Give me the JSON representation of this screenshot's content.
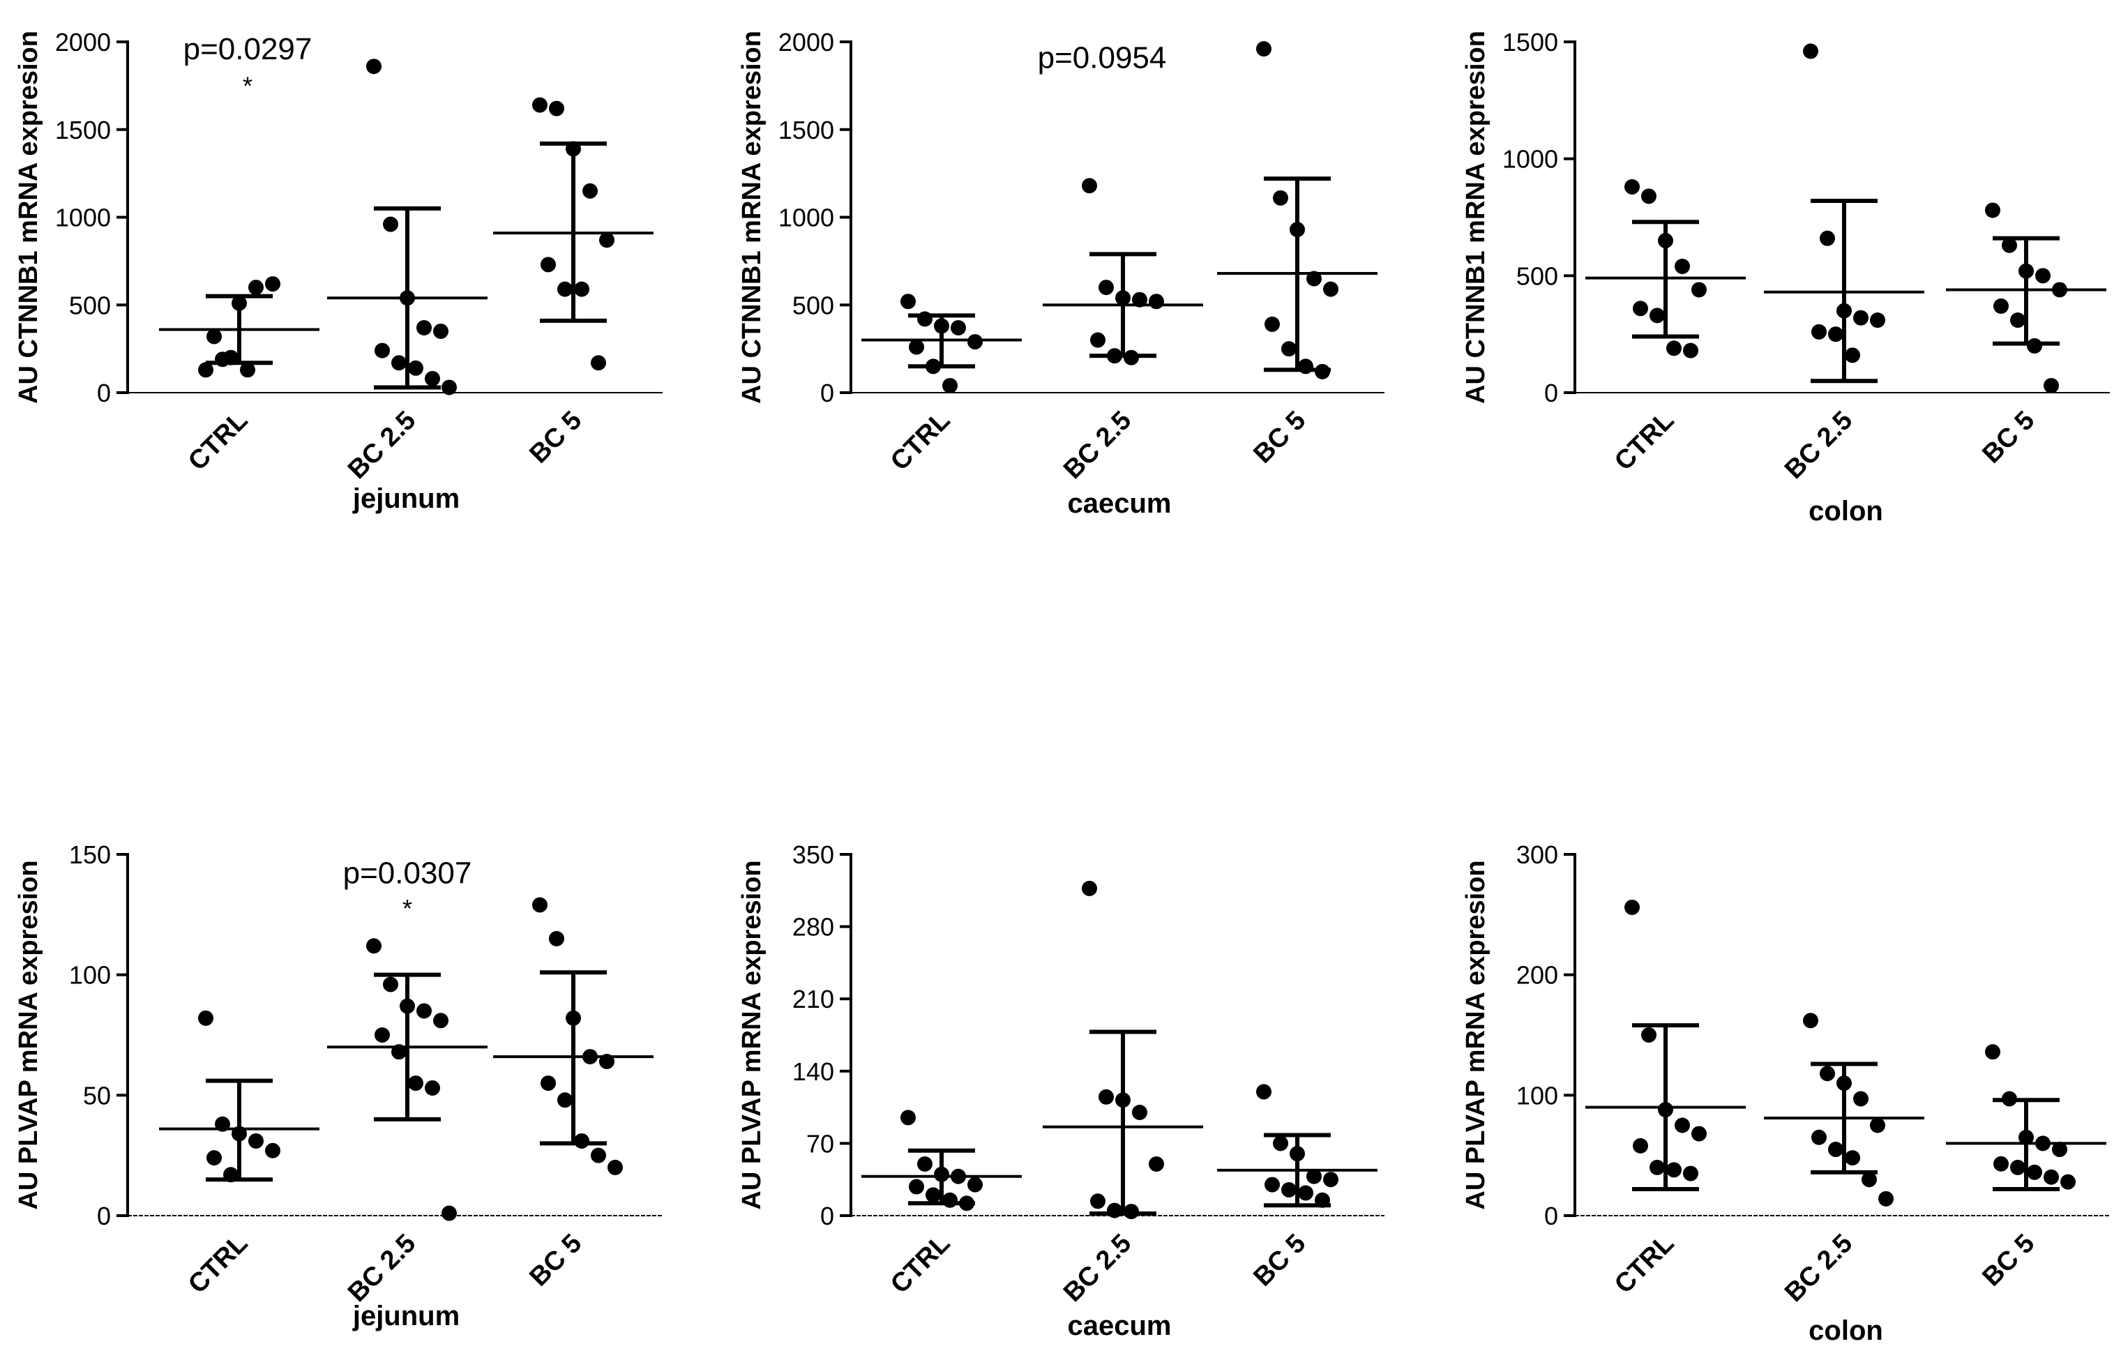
{
  "figure": {
    "description_title": "",
    "accent_color": "#000000",
    "background_color": "#ffffff"
  },
  "chart_data": [
    {
      "type": "scatter",
      "title": "",
      "region": "jejunum",
      "xlabel": "jejunum",
      "ylabel": "AU CTNNB1 mRNA expresion",
      "ylim": [
        0,
        2000
      ],
      "yticks": [
        0,
        500,
        1000,
        1500,
        2000
      ],
      "categories": [
        "CTRL",
        "BC 2.5",
        "BC 5"
      ],
      "annotation": {
        "text": "p=0.0297",
        "star": "*",
        "category_index": 0,
        "text_value": 1900,
        "star_value": 1700
      },
      "series": [
        {
          "name": "CTRL",
          "points": [
            130,
            190,
            510,
            600,
            620,
            320,
            200,
            130
          ],
          "mean": 360,
          "sd_low": 170,
          "sd_high": 550
        },
        {
          "name": "BC 2.5",
          "points": [
            1860,
            960,
            540,
            370,
            350,
            240,
            170,
            140,
            80,
            30
          ],
          "mean": 540,
          "sd_low": 30,
          "sd_high": 1050
        },
        {
          "name": "BC 5",
          "points": [
            1640,
            1620,
            1390,
            1150,
            870,
            730,
            590,
            590,
            170
          ],
          "mean": 910,
          "sd_low": 410,
          "sd_high": 1420
        }
      ]
    },
    {
      "type": "scatter",
      "title": "",
      "region": "caecum",
      "xlabel": "caecum",
      "ylabel": "AU CTNNB1 mRNA expresion",
      "ylim": [
        0,
        2000
      ],
      "yticks": [
        0,
        500,
        1000,
        1500,
        2000
      ],
      "categories": [
        "CTRL",
        "BC 2.5",
        "BC 5"
      ],
      "annotation": {
        "text": "p=0.0954",
        "star": "",
        "category_index": 1,
        "text_value": 1850,
        "star_value": null
      },
      "series": [
        {
          "name": "CTRL",
          "points": [
            520,
            420,
            380,
            370,
            290,
            260,
            150,
            40
          ],
          "mean": 300,
          "sd_low": 150,
          "sd_high": 440
        },
        {
          "name": "BC 2.5",
          "points": [
            1180,
            600,
            540,
            530,
            520,
            300,
            210,
            200
          ],
          "mean": 500,
          "sd_low": 210,
          "sd_high": 790
        },
        {
          "name": "BC 5",
          "points": [
            1960,
            1110,
            930,
            650,
            590,
            390,
            250,
            150,
            120
          ],
          "mean": 680,
          "sd_low": 130,
          "sd_high": 1220
        }
      ]
    },
    {
      "type": "scatter",
      "title": "",
      "region": "colon",
      "xlabel": "colon",
      "ylabel": "AU CTNNB1 mRNA expresion",
      "ylim": [
        0,
        1500
      ],
      "yticks": [
        0,
        500,
        1000,
        1500
      ],
      "categories": [
        "CTRL",
        "BC 2.5",
        "BC 5"
      ],
      "annotation": null,
      "series": [
        {
          "name": "CTRL",
          "points": [
            880,
            840,
            650,
            540,
            440,
            360,
            330,
            190,
            180
          ],
          "mean": 490,
          "sd_low": 240,
          "sd_high": 730
        },
        {
          "name": "BC 2.5",
          "points": [
            1460,
            660,
            350,
            320,
            310,
            260,
            250,
            160
          ],
          "mean": 430,
          "sd_low": 50,
          "sd_high": 820
        },
        {
          "name": "BC 5",
          "points": [
            780,
            630,
            520,
            500,
            440,
            370,
            310,
            200,
            30
          ],
          "mean": 440,
          "sd_low": 210,
          "sd_high": 660
        }
      ]
    },
    {
      "type": "scatter",
      "title": "",
      "region": "jejunum",
      "xlabel": "jejunum",
      "ylabel": "AU PLVAP mRNA expresion",
      "ylim": [
        0,
        150
      ],
      "yticks": [
        0,
        50,
        100,
        150
      ],
      "categories": [
        "CTRL",
        "BC 2.5",
        "BC 5"
      ],
      "annotation": {
        "text": "p=0.0307",
        "star": "*",
        "category_index": 1,
        "text_value": 138,
        "star_value": 124
      },
      "series": [
        {
          "name": "CTRL",
          "points": [
            82,
            38,
            34,
            31,
            27,
            24,
            17
          ],
          "mean": 36,
          "sd_low": 15,
          "sd_high": 56
        },
        {
          "name": "BC 2.5",
          "points": [
            112,
            96,
            87,
            85,
            81,
            75,
            68,
            55,
            53,
            1
          ],
          "mean": 70,
          "sd_low": 40,
          "sd_high": 100
        },
        {
          "name": "BC 5",
          "points": [
            129,
            115,
            82,
            66,
            64,
            55,
            48,
            31,
            25,
            20
          ],
          "mean": 66,
          "sd_low": 30,
          "sd_high": 101
        }
      ]
    },
    {
      "type": "scatter",
      "title": "",
      "region": "caecum",
      "xlabel": "caecum",
      "ylabel": "AU PLVAP mRNA expresion",
      "ylim": [
        0,
        350
      ],
      "yticks": [
        0,
        70,
        140,
        210,
        280,
        350
      ],
      "categories": [
        "CTRL",
        "BC 2.5",
        "BC 5"
      ],
      "annotation": null,
      "series": [
        {
          "name": "CTRL",
          "points": [
            95,
            50,
            40,
            38,
            30,
            28,
            20,
            15,
            12
          ],
          "mean": 38,
          "sd_low": 12,
          "sd_high": 63
        },
        {
          "name": "BC 2.5",
          "points": [
            317,
            115,
            112,
            100,
            50,
            14,
            5,
            4
          ],
          "mean": 86,
          "sd_low": 2,
          "sd_high": 178
        },
        {
          "name": "BC 5",
          "points": [
            120,
            70,
            60,
            38,
            35,
            30,
            25,
            22,
            15
          ],
          "mean": 44,
          "sd_low": 10,
          "sd_high": 78
        }
      ]
    },
    {
      "type": "scatter",
      "title": "",
      "region": "colon",
      "xlabel": "colon",
      "ylabel": "AU PLVAP mRNA expresion",
      "ylim": [
        0,
        300
      ],
      "yticks": [
        0,
        100,
        200,
        300
      ],
      "categories": [
        "CTRL",
        "BC 2.5",
        "BC 5"
      ],
      "annotation": null,
      "series": [
        {
          "name": "CTRL",
          "points": [
            256,
            150,
            88,
            75,
            68,
            58,
            40,
            38,
            35
          ],
          "mean": 90,
          "sd_low": 22,
          "sd_high": 158
        },
        {
          "name": "BC 2.5",
          "points": [
            162,
            118,
            110,
            97,
            75,
            65,
            55,
            48,
            30,
            14
          ],
          "mean": 81,
          "sd_low": 36,
          "sd_high": 126
        },
        {
          "name": "BC 5",
          "points": [
            136,
            97,
            65,
            60,
            55,
            43,
            40,
            36,
            32,
            28
          ],
          "mean": 60,
          "sd_low": 22,
          "sd_high": 96
        }
      ]
    }
  ]
}
